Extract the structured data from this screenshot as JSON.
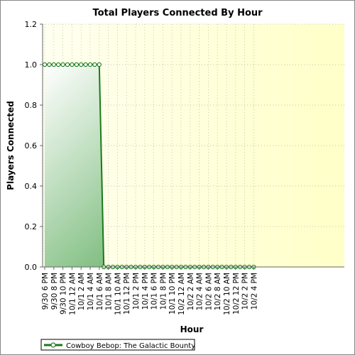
{
  "chart_data": {
    "type": "area",
    "title": "Total Players Connected By Hour",
    "xlabel": "Hour",
    "ylabel": "Players Connected",
    "ylim": [
      0,
      1.2
    ],
    "yticks": [
      "0.0",
      "0.2",
      "0.4",
      "0.6",
      "0.8",
      "1.0",
      "1.2"
    ],
    "x_tick_labels": [
      "9/30 6 PM",
      "9/30 8 PM",
      "9/30 10 PM",
      "10/1 12 AM",
      "10/1 2 AM",
      "10/1 4 AM",
      "10/1 6 AM",
      "10/1 8 AM",
      "10/1 10 AM",
      "10/1 12 PM",
      "10/1 2 PM",
      "10/1 4 PM",
      "10/1 6 PM",
      "10/1 8 PM",
      "10/1 10 PM",
      "10/2 12 AM",
      "10/2 2 AM",
      "10/2 4 AM",
      "10/2 6 AM",
      "10/2 8 AM",
      "10/2 10 AM",
      "10/2 12 PM",
      "10/2 2 PM",
      "10/2 4 PM"
    ],
    "grid": true,
    "legend_position": "bottom-left",
    "series": [
      {
        "name": "Cowboy Bebop: The Galactic Bounty",
        "color": "#1a7a1a",
        "fill_top_color": "#ffffff",
        "fill_bottom_color": "#3a9a3a",
        "points": [
          {
            "x": "9/30 6 PM",
            "y": 1.0
          },
          {
            "x": "9/30 7 PM",
            "y": 1.0
          },
          {
            "x": "9/30 8 PM",
            "y": 1.0
          },
          {
            "x": "9/30 9 PM",
            "y": 1.0
          },
          {
            "x": "9/30 10 PM",
            "y": 1.0
          },
          {
            "x": "9/30 11 PM",
            "y": 1.0
          },
          {
            "x": "10/1 1 AM",
            "y": 1.0
          },
          {
            "x": "10/1 2 AM",
            "y": 1.0
          },
          {
            "x": "10/1 3 AM",
            "y": 1.0
          },
          {
            "x": "10/1 4 AM",
            "y": 1.0
          },
          {
            "x": "10/1 5 AM",
            "y": 1.0
          },
          {
            "x": "10/1 6 AM",
            "y": 1.0
          },
          {
            "x": "10/1 7 AM",
            "y": 1.0
          },
          {
            "x": "10/1 8 AM",
            "y": 0.0
          },
          {
            "x": "10/1 9 AM",
            "y": 0.0
          },
          {
            "x": "10/1 10 AM",
            "y": 0.0
          },
          {
            "x": "10/1 11 AM",
            "y": 0.0
          },
          {
            "x": "10/1 12 PM",
            "y": 0.0
          },
          {
            "x": "10/1 1 PM",
            "y": 0.0
          },
          {
            "x": "10/1 2 PM",
            "y": 0.0
          },
          {
            "x": "10/1 3 PM",
            "y": 0.0
          },
          {
            "x": "10/1 4 PM",
            "y": 0.0
          },
          {
            "x": "10/1 5 PM",
            "y": 0.0
          },
          {
            "x": "10/1 6 PM",
            "y": 0.0
          },
          {
            "x": "10/1 7 PM",
            "y": 0.0
          },
          {
            "x": "10/1 8 PM",
            "y": 0.0
          },
          {
            "x": "10/1 9 PM",
            "y": 0.0
          },
          {
            "x": "10/1 10 PM",
            "y": 0.0
          },
          {
            "x": "10/1 11 PM",
            "y": 0.0
          },
          {
            "x": "10/2 12 AM",
            "y": 0.0
          },
          {
            "x": "10/2 1 AM",
            "y": 0.0
          },
          {
            "x": "10/2 2 AM",
            "y": 0.0
          },
          {
            "x": "10/2 3 AM",
            "y": 0.0
          },
          {
            "x": "10/2 4 AM",
            "y": 0.0
          },
          {
            "x": "10/2 5 AM",
            "y": 0.0
          },
          {
            "x": "10/2 6 AM",
            "y": 0.0
          },
          {
            "x": "10/2 7 AM",
            "y": 0.0
          },
          {
            "x": "10/2 8 AM",
            "y": 0.0
          },
          {
            "x": "10/2 9 AM",
            "y": 0.0
          },
          {
            "x": "10/2 10 AM",
            "y": 0.0
          },
          {
            "x": "10/2 11 AM",
            "y": 0.0
          },
          {
            "x": "10/2 12 PM",
            "y": 0.0
          },
          {
            "x": "10/2 1 PM",
            "y": 0.0
          },
          {
            "x": "10/2 2 PM",
            "y": 0.0
          },
          {
            "x": "10/2 3 PM",
            "y": 0.0
          },
          {
            "x": "10/2 4 PM",
            "y": 0.0
          },
          {
            "x": "10/2 5 PM",
            "y": 0.0
          }
        ]
      }
    ],
    "plot_background": {
      "left": "#fffff0",
      "right": "#ffffc8"
    }
  }
}
